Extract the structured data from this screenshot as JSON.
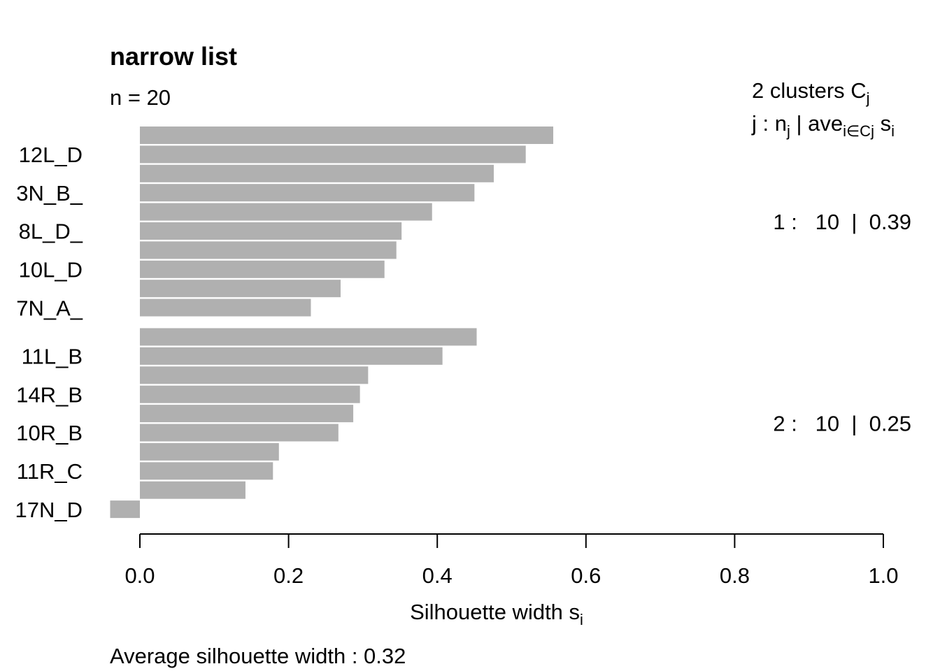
{
  "chart_data": {
    "type": "bar",
    "orientation": "horizontal",
    "title": "narrow list",
    "n_label": "n = 20",
    "xlabel_main": "Silhouette width s",
    "xlabel_sub": "i",
    "xlim": [
      0,
      1
    ],
    "x_ticks": [
      "0.0",
      "0.2",
      "0.4",
      "0.6",
      "0.8",
      "1.0"
    ],
    "bar_color": "#b0b0b0",
    "footer": "Average silhouette width :  0.32",
    "legend": {
      "header_1_main": "2  clusters  C",
      "header_1_sub": "j",
      "header_2_a": "j :  n",
      "header_2_a_sub": "j",
      "header_2_b": " | ave",
      "header_2_b_sub": "i∈Cj",
      "header_2_c": "  s",
      "header_2_c_sub": "i"
    },
    "clusters": [
      {
        "summary": "1 :   10  |  0.39",
        "values": [
          0.556,
          0.519,
          0.476,
          0.45,
          0.393,
          0.352,
          0.345,
          0.329,
          0.27,
          0.23
        ],
        "labels": [
          "",
          "12L_D",
          "",
          "3N_B_",
          "",
          "8L_D_",
          "",
          "10L_D",
          "",
          "7N_A_"
        ]
      },
      {
        "summary": "2 :   10  |  0.25",
        "values": [
          0.453,
          0.407,
          0.307,
          0.296,
          0.287,
          0.267,
          0.187,
          0.179,
          0.142,
          -0.04
        ],
        "labels": [
          "",
          "11L_B",
          "",
          "14R_B",
          "",
          "10R_B",
          "",
          "11R_C",
          "",
          "17N_D"
        ]
      }
    ]
  }
}
